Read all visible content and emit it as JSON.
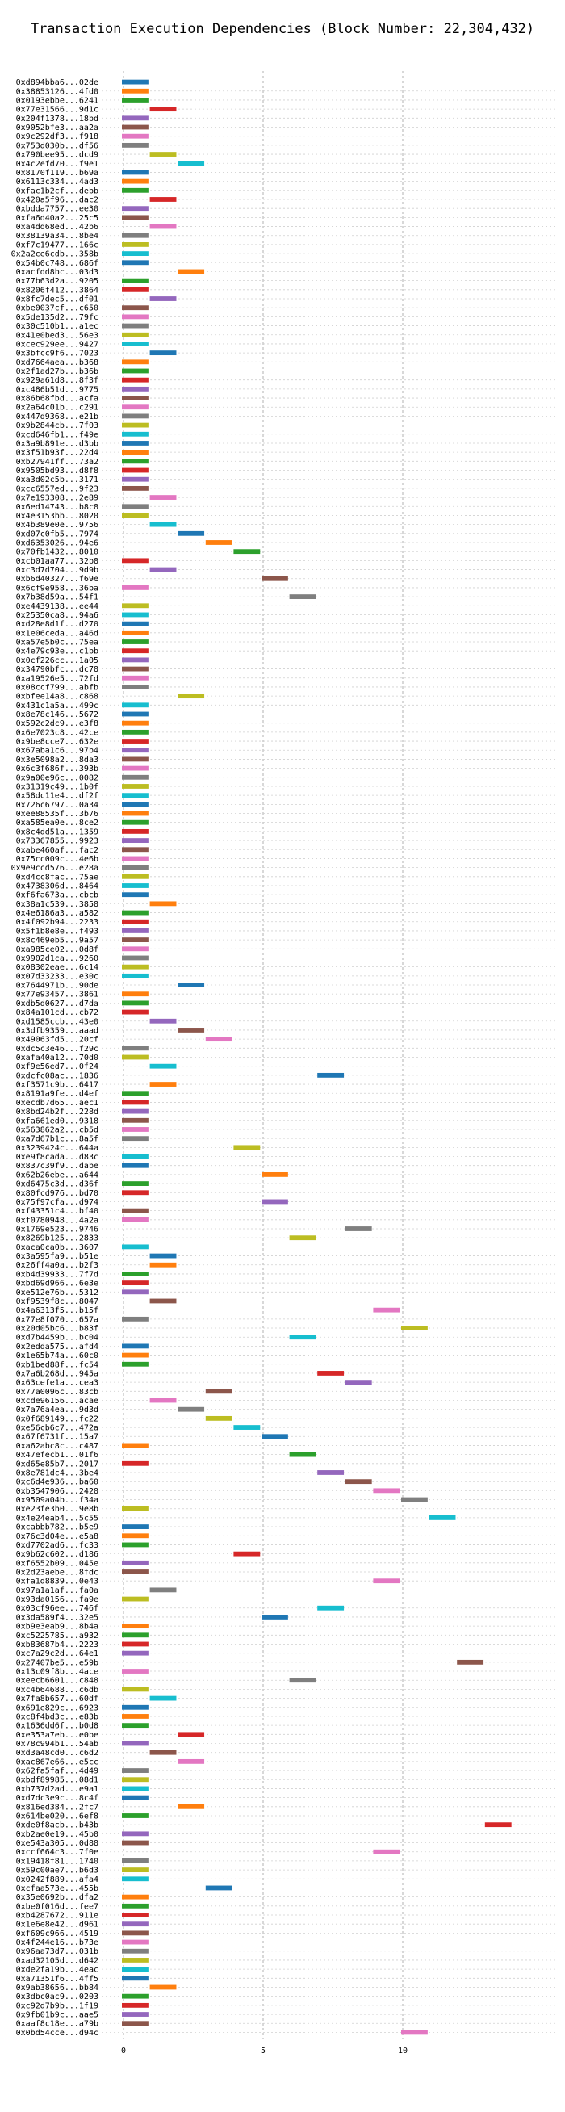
{
  "chart_data": {
    "type": "bar",
    "orientation": "horizontal-gantt",
    "title": "Transaction Execution Dependencies (Block Number: 22,304,432)",
    "xlabel": "",
    "ylabel": "",
    "xlim": [
      -0.5,
      14.5
    ],
    "xticks": [
      0,
      5,
      10
    ],
    "grid": true,
    "legend": "none",
    "colors": [
      "#1f77b4",
      "#ff7f0e",
      "#2ca02c",
      "#d62728",
      "#9467bd",
      "#8c564b",
      "#e377c2",
      "#7f7f7f",
      "#bcbd22",
      "#17becf"
    ],
    "rows": [
      {
        "label": "0xd894bba6...02de",
        "start": 0
      },
      {
        "label": "0x38853126...4fd0",
        "start": 0
      },
      {
        "label": "0x0193ebbe...6241",
        "start": 0
      },
      {
        "label": "0x77e31566...9d1c",
        "start": 1
      },
      {
        "label": "0x204f1378...18bd",
        "start": 0
      },
      {
        "label": "0x9052bfe3...aa2a",
        "start": 0
      },
      {
        "label": "0x9c292df3...f918",
        "start": 0
      },
      {
        "label": "0x753d030b...df56",
        "start": 0
      },
      {
        "label": "0x790bee95...dcd9",
        "start": 1
      },
      {
        "label": "0x4c2efd70...f9e1",
        "start": 2
      },
      {
        "label": "0x8170f119...b69a",
        "start": 0
      },
      {
        "label": "0x6113c334...4ad3",
        "start": 0
      },
      {
        "label": "0xfac1b2cf...debb",
        "start": 0
      },
      {
        "label": "0x420a5f96...dac2",
        "start": 1
      },
      {
        "label": "0xbdda7757...ee30",
        "start": 0
      },
      {
        "label": "0xfa6d40a2...25c5",
        "start": 0
      },
      {
        "label": "0xa4dd68ed...42b6",
        "start": 1
      },
      {
        "label": "0x38139a34...8be4",
        "start": 0
      },
      {
        "label": "0xf7c19477...166c",
        "start": 0
      },
      {
        "label": "0x2a2ce6cdb...358b",
        "start": 0
      },
      {
        "label": "0x54b0c748...686f",
        "start": 0
      },
      {
        "label": "0xacfdd8bc...03d3",
        "start": 2
      },
      {
        "label": "0x77b63d2a...9205",
        "start": 0
      },
      {
        "label": "0x8206f412...3864",
        "start": 0
      },
      {
        "label": "0x8fc7dec5...df01",
        "start": 1
      },
      {
        "label": "0xbe0037cf...c650",
        "start": 0
      },
      {
        "label": "0x5de135d2...79fc",
        "start": 0
      },
      {
        "label": "0x30c510b1...a1ec",
        "start": 0
      },
      {
        "label": "0x41e0bed3...56e3",
        "start": 0
      },
      {
        "label": "0xcec929ee...9427",
        "start": 0
      },
      {
        "label": "0x3bfcc9f6...7023",
        "start": 1
      },
      {
        "label": "0xd7664aea...b368",
        "start": 0
      },
      {
        "label": "0x2f1ad27b...b36b",
        "start": 0
      },
      {
        "label": "0x929a61d8...8f3f",
        "start": 0
      },
      {
        "label": "0xc486b51d...9775",
        "start": 0
      },
      {
        "label": "0x86b68fbd...acfa",
        "start": 0
      },
      {
        "label": "0x2a64c01b...c291",
        "start": 0
      },
      {
        "label": "0x447d9368...e21b",
        "start": 0
      },
      {
        "label": "0x9b2844cb...7f03",
        "start": 0
      },
      {
        "label": "0xcd646fb1...f49e",
        "start": 0
      },
      {
        "label": "0x3a9b891e...d3bb",
        "start": 0
      },
      {
        "label": "0x3f51b93f...22d4",
        "start": 0
      },
      {
        "label": "0xb27941ff...73a2",
        "start": 0
      },
      {
        "label": "0x9505bd93...d8f8",
        "start": 0
      },
      {
        "label": "0xa3d02c5b...3171",
        "start": 0
      },
      {
        "label": "0xcc6557ed...9f23",
        "start": 0
      },
      {
        "label": "0x7e193308...2e89",
        "start": 1
      },
      {
        "label": "0x6ed14743...b8c8",
        "start": 0
      },
      {
        "label": "0x4e3153bb...8020",
        "start": 0
      },
      {
        "label": "0x4b389e0e...9756",
        "start": 1
      },
      {
        "label": "0xd07c0fb5...7974",
        "start": 2
      },
      {
        "label": "0xd6353026...94e6",
        "start": 3
      },
      {
        "label": "0x70fb1432...8010",
        "start": 4
      },
      {
        "label": "0xcb01aa77...32b8",
        "start": 0
      },
      {
        "label": "0xc3d7d704...9d9b",
        "start": 1
      },
      {
        "label": "0xb6d40327...f69e",
        "start": 5
      },
      {
        "label": "0x6cf9e958...36ba",
        "start": 0
      },
      {
        "label": "0x7b38d59a...54f1",
        "start": 6
      },
      {
        "label": "0xe4439138...ee44",
        "start": 0
      },
      {
        "label": "0x25350ca8...94a6",
        "start": 0
      },
      {
        "label": "0xd28e8d1f...d270",
        "start": 0
      },
      {
        "label": "0x1e06ceda...a46d",
        "start": 0
      },
      {
        "label": "0xa57e5b0c...75ea",
        "start": 0
      },
      {
        "label": "0x4e79c93e...c1bb",
        "start": 0
      },
      {
        "label": "0x0cf226cc...1a05",
        "start": 0
      },
      {
        "label": "0x34790bfc...dc78",
        "start": 0
      },
      {
        "label": "0xa19526e5...72fd",
        "start": 0
      },
      {
        "label": "0x08ccf799...abfb",
        "start": 0
      },
      {
        "label": "0xbfee14a8...c868",
        "start": 2
      },
      {
        "label": "0x431c1a5a...499c",
        "start": 0
      },
      {
        "label": "0x8e78c146...5672",
        "start": 0
      },
      {
        "label": "0x592c2dc9...e3f8",
        "start": 0
      },
      {
        "label": "0x6e7023c8...42ce",
        "start": 0
      },
      {
        "label": "0x9be8cce7...632e",
        "start": 0
      },
      {
        "label": "0x67aba1c6...97b4",
        "start": 0
      },
      {
        "label": "0x3e5098a2...8da3",
        "start": 0
      },
      {
        "label": "0x6c3f686f...393b",
        "start": 0
      },
      {
        "label": "0x9a00e96c...0082",
        "start": 0
      },
      {
        "label": "0x31319c49...1b0f",
        "start": 0
      },
      {
        "label": "0x58dc11e4...df2f",
        "start": 0
      },
      {
        "label": "0x726c6797...0a34",
        "start": 0
      },
      {
        "label": "0xee88535f...3b76",
        "start": 0
      },
      {
        "label": "0xa585ea0e...8ce2",
        "start": 0
      },
      {
        "label": "0x8c4dd51a...1359",
        "start": 0
      },
      {
        "label": "0x73367855...9923",
        "start": 0
      },
      {
        "label": "0xabe460af...fac2",
        "start": 0
      },
      {
        "label": "0x75cc009c...4e6b",
        "start": 0
      },
      {
        "label": "0x9e9ccd576...e28a",
        "start": 0
      },
      {
        "label": "0xd4cc8fac...75ae",
        "start": 0
      },
      {
        "label": "0x4738306d...8464",
        "start": 0
      },
      {
        "label": "0xf6fa673a...cbcb",
        "start": 0
      },
      {
        "label": "0x38a1c539...3858",
        "start": 1
      },
      {
        "label": "0x4e6186a3...a582",
        "start": 0
      },
      {
        "label": "0x4f092b94...2233",
        "start": 0
      },
      {
        "label": "0x5f1b8e8e...f493",
        "start": 0
      },
      {
        "label": "0x8c469eb5...9a57",
        "start": 0
      },
      {
        "label": "0xa985ce02...0d8f",
        "start": 0
      },
      {
        "label": "0x9902d1ca...9260",
        "start": 0
      },
      {
        "label": "0x08302eae...6c14",
        "start": 0
      },
      {
        "label": "0x07d33233...e30c",
        "start": 0
      },
      {
        "label": "0x7644971b...90de",
        "start": 2
      },
      {
        "label": "0x77e93457...3861",
        "start": 0
      },
      {
        "label": "0xdb5d0627...d7da",
        "start": 0
      },
      {
        "label": "0x84a101cd...cb72",
        "start": 0
      },
      {
        "label": "0xd1585ccb...43e0",
        "start": 1
      },
      {
        "label": "0x3dfb9359...aaad",
        "start": 2
      },
      {
        "label": "0x49063fd5...20cf",
        "start": 3
      },
      {
        "label": "0xdc5c3e46...f29c",
        "start": 0
      },
      {
        "label": "0xafa40a12...70d0",
        "start": 0
      },
      {
        "label": "0xf9e56ed7...0f24",
        "start": 1
      },
      {
        "label": "0xdcfc08ac...1836",
        "start": 7
      },
      {
        "label": "0xf3571c9b...6417",
        "start": 1
      },
      {
        "label": "0x8191a9fe...d4ef",
        "start": 0
      },
      {
        "label": "0xecdb7d65...aec1",
        "start": 0
      },
      {
        "label": "0x8bd24b2f...228d",
        "start": 0
      },
      {
        "label": "0xfa661ed0...9318",
        "start": 0
      },
      {
        "label": "0x563862a2...cb5d",
        "start": 0
      },
      {
        "label": "0xa7d67b1c...8a5f",
        "start": 0
      },
      {
        "label": "0x3239424c...644a",
        "start": 4
      },
      {
        "label": "0xe9f8cada...d83c",
        "start": 0
      },
      {
        "label": "0x837c39f9...dabe",
        "start": 0
      },
      {
        "label": "0x62b26ebe...a644",
        "start": 5
      },
      {
        "label": "0xd6475c3d...d36f",
        "start": 0
      },
      {
        "label": "0x80fcd976...bd70",
        "start": 0
      },
      {
        "label": "0x75f97cfa...d974",
        "start": 5
      },
      {
        "label": "0xf43351c4...bf40",
        "start": 0
      },
      {
        "label": "0xf0780948...4a2a",
        "start": 0
      },
      {
        "label": "0x1769e523...9746",
        "start": 8
      },
      {
        "label": "0x8269b125...2833",
        "start": 6
      },
      {
        "label": "0xaca0ca0b...3607",
        "start": 0
      },
      {
        "label": "0x3a595fa9...b51e",
        "start": 1
      },
      {
        "label": "0x26ff4a0a...b2f3",
        "start": 1
      },
      {
        "label": "0xb4d39933...7f7d",
        "start": 0
      },
      {
        "label": "0xbd69d966...6e3e",
        "start": 0
      },
      {
        "label": "0xe512e76b...5312",
        "start": 0
      },
      {
        "label": "0xf9539f8c...8047",
        "start": 1
      },
      {
        "label": "0x4a6313f5...b15f",
        "start": 9
      },
      {
        "label": "0x77e8f070...657a",
        "start": 0
      },
      {
        "label": "0x20d05bc6...b83f",
        "start": 10
      },
      {
        "label": "0xd7b4459b...bc04",
        "start": 6
      },
      {
        "label": "0x2edda575...afd4",
        "start": 0
      },
      {
        "label": "0x1e65b74a...60c0",
        "start": 0
      },
      {
        "label": "0xb1bed88f...fc54",
        "start": 0
      },
      {
        "label": "0x7a6b268d...945a",
        "start": 7
      },
      {
        "label": "0x63cefe1a...cea3",
        "start": 8
      },
      {
        "label": "0x77a0096c...83cb",
        "start": 3
      },
      {
        "label": "0xcde96156...acae",
        "start": 1
      },
      {
        "label": "0x7a76a4ea...9d3d",
        "start": 2
      },
      {
        "label": "0x0f689149...fc22",
        "start": 3
      },
      {
        "label": "0xe56cb6c7...472a",
        "start": 4
      },
      {
        "label": "0x67f6731f...15a7",
        "start": 5
      },
      {
        "label": "0xa62abc8c...c487",
        "start": 0
      },
      {
        "label": "0x47efecb1...01f6",
        "start": 6
      },
      {
        "label": "0xd65e85b7...2017",
        "start": 0
      },
      {
        "label": "0x8e781dc4...3be4",
        "start": 7
      },
      {
        "label": "0xc6d4e936...ba60",
        "start": 8
      },
      {
        "label": "0xb3547906...2428",
        "start": 9
      },
      {
        "label": "0x9509a04b...f34a",
        "start": 10
      },
      {
        "label": "0xe23fe3b0...9e8b",
        "start": 0
      },
      {
        "label": "0x4e24eab4...5c55",
        "start": 11
      },
      {
        "label": "0xcabbb782...b5e9",
        "start": 0
      },
      {
        "label": "0x76c3d04e...e5a8",
        "start": 0
      },
      {
        "label": "0xd7702ad6...fc33",
        "start": 0
      },
      {
        "label": "0x9b62c602...d186",
        "start": 4
      },
      {
        "label": "0xf6552b09...045e",
        "start": 0
      },
      {
        "label": "0x2d23aebe...8fdc",
        "start": 0
      },
      {
        "label": "0xfa1d8839...0e43",
        "start": 9
      },
      {
        "label": "0x97a1a1af...fa0a",
        "start": 1
      },
      {
        "label": "0x93da0156...fa9e",
        "start": 0
      },
      {
        "label": "0x03cf96ee...746f",
        "start": 7
      },
      {
        "label": "0x3da589f4...32e5",
        "start": 5
      },
      {
        "label": "0xb9e3eab9...8b4a",
        "start": 0
      },
      {
        "label": "0xc5225785...a932",
        "start": 0
      },
      {
        "label": "0xb83687b4...2223",
        "start": 0
      },
      {
        "label": "0xc7a29c2d...64e1",
        "start": 0
      },
      {
        "label": "0x27407be5...e59b",
        "start": 12
      },
      {
        "label": "0x13c09f8b...4ace",
        "start": 0
      },
      {
        "label": "0xeecb6601...c848",
        "start": 6
      },
      {
        "label": "0xc4b64688...c6db",
        "start": 0
      },
      {
        "label": "0x7fa8b657...60df",
        "start": 1
      },
      {
        "label": "0x691e829c...6923",
        "start": 0
      },
      {
        "label": "0xc8f4bd3c...e83b",
        "start": 0
      },
      {
        "label": "0x1636dd6f...b0d8",
        "start": 0
      },
      {
        "label": "0xe353a7eb...e0be",
        "start": 2
      },
      {
        "label": "0x78c994b1...54ab",
        "start": 0
      },
      {
        "label": "0xd3a48cd0...c6d2",
        "start": 1
      },
      {
        "label": "0xac867e66...e5cc",
        "start": 2
      },
      {
        "label": "0x62fa5faf...4d49",
        "start": 0
      },
      {
        "label": "0xbdf89985...08d1",
        "start": 0
      },
      {
        "label": "0xb737d2ad...e9a1",
        "start": 0
      },
      {
        "label": "0xd7dc3e9c...8c4f",
        "start": 0
      },
      {
        "label": "0x816ed384...2fc7",
        "start": 2
      },
      {
        "label": "0x614be020...6ef8",
        "start": 0
      },
      {
        "label": "0xde0f8acb...b43b",
        "start": 13
      },
      {
        "label": "0xb2ae0e19...45b0",
        "start": 0
      },
      {
        "label": "0xe543a305...0d88",
        "start": 0
      },
      {
        "label": "0xccf664c3...7f0e",
        "start": 9
      },
      {
        "label": "0x19418f81...1740",
        "start": 0
      },
      {
        "label": "0x59c00ae7...b6d3",
        "start": 0
      },
      {
        "label": "0x0242f889...afa4",
        "start": 0
      },
      {
        "label": "0xcfaa573e...455b",
        "start": 3
      },
      {
        "label": "0x35e0692b...dfa2",
        "start": 0
      },
      {
        "label": "0xbe0f016d...fee7",
        "start": 0
      },
      {
        "label": "0xb4287672...911e",
        "start": 0
      },
      {
        "label": "0x1e6e8e42...d961",
        "start": 0
      },
      {
        "label": "0xf609c966...4519",
        "start": 0
      },
      {
        "label": "0x4f244e16...b73e",
        "start": 0
      },
      {
        "label": "0x96aa73d7...031b",
        "start": 0
      },
      {
        "label": "0xad32105d...d642",
        "start": 0
      },
      {
        "label": "0xde2fa19b...4eac",
        "start": 0
      },
      {
        "label": "0xa71351f6...4ff5",
        "start": 0
      },
      {
        "label": "0x9ab38656...bb84",
        "start": 1
      },
      {
        "label": "0x3dbc0ac9...0203",
        "start": 0
      },
      {
        "label": "0xc92d7b9b...1f19",
        "start": 0
      },
      {
        "label": "0x9fb01b9c...aae5",
        "start": 0
      },
      {
        "label": "0xaaf8c18e...a79b",
        "start": 0
      },
      {
        "label": "0x0bd54cce...d94c",
        "start": 10
      }
    ]
  }
}
